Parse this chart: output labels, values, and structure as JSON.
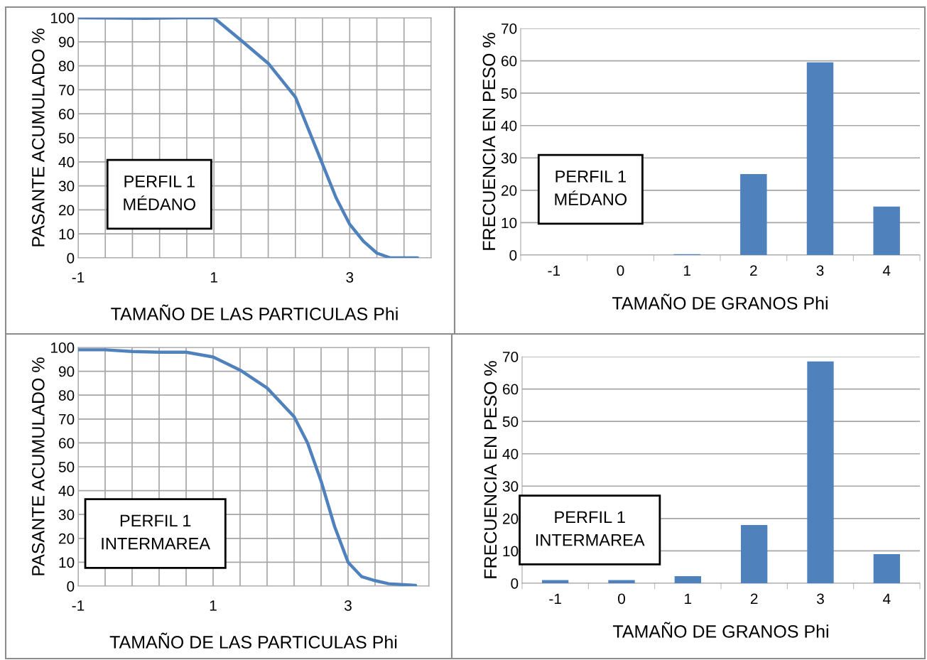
{
  "chart_data": [
    {
      "type": "line",
      "xlabel": "TAMAÑO DE LAS PARTICULAS Phi",
      "ylabel": "PASANTE ACUMULADO %",
      "annotations": [
        "PERFIL 1\nMÉDANO"
      ],
      "series": [
        {
          "color": "#4f81bd",
          "x": [
            -1,
            0,
            0.6,
            1.0,
            1.4,
            1.8,
            2.2,
            2.4,
            2.6,
            2.8,
            3.0,
            3.2,
            3.4,
            3.6,
            4.0
          ],
          "values": [
            100,
            99.8,
            100,
            100,
            90.6,
            81,
            67,
            53,
            39,
            25,
            14,
            7,
            2,
            0,
            0
          ]
        }
      ],
      "xlim": [
        -1,
        4.2
      ],
      "xticks": [
        -1,
        {
          "value": -0.6,
          "label": null
        },
        {
          "value": -0.2,
          "label": null
        },
        {
          "value": 0.2,
          "label": null
        },
        {
          "value": 0.6,
          "label": null
        },
        1,
        {
          "value": 1.4,
          "label": null
        },
        {
          "value": 1.8,
          "label": null
        },
        {
          "value": 2.2,
          "label": null
        },
        {
          "value": 2.6,
          "label": null
        },
        3,
        {
          "value": 3.4,
          "label": null
        },
        {
          "value": 3.8,
          "label": null
        },
        {
          "value": 4.2,
          "label": null
        }
      ],
      "ylim": [
        0,
        100
      ],
      "yticks": [
        0,
        10,
        20,
        30,
        40,
        50,
        60,
        70,
        80,
        90,
        100
      ],
      "grid": true,
      "legend": false,
      "marker": "none",
      "line_style": "solid"
    },
    {
      "type": "bar",
      "xlabel": "TAMAÑO DE GRANOS Phi",
      "ylabel": "FRECUENCIA EN PESO %",
      "annotations": [
        "PERFIL 1\nMÉDANO"
      ],
      "categories": [
        "-1",
        "0",
        "1",
        "2",
        "3",
        "4"
      ],
      "series": [
        {
          "color": "#4f81bd",
          "values": [
            0,
            0,
            0.3,
            25,
            59.5,
            15
          ]
        }
      ],
      "ylim": [
        0,
        70
      ],
      "yticks": [
        0,
        10,
        20,
        30,
        40,
        50,
        60,
        70
      ],
      "grid": "y",
      "legend": false
    },
    {
      "type": "line",
      "xlabel": "TAMAÑO DE LAS PARTICULAS Phi",
      "ylabel": "PASANTE ACUMULADO %",
      "annotations": [
        "PERFIL 1\nINTERMAREA"
      ],
      "series": [
        {
          "color": "#4f81bd",
          "x": [
            -1,
            -0.6,
            -0.2,
            0.2,
            0.6,
            1.0,
            1.4,
            1.8,
            2.2,
            2.4,
            2.6,
            2.8,
            3.0,
            3.2,
            3.4,
            3.6,
            4.0
          ],
          "values": [
            99,
            99,
            98.3,
            98,
            98,
            96,
            90.5,
            83,
            71,
            60,
            44,
            25,
            10,
            4,
            2.3,
            1,
            0.3
          ]
        }
      ],
      "xlim": [
        -1,
        4.2
      ],
      "xticks": [
        -1,
        {
          "value": -0.6,
          "label": null
        },
        {
          "value": -0.2,
          "label": null
        },
        {
          "value": 0.2,
          "label": null
        },
        {
          "value": 0.6,
          "label": null
        },
        1,
        {
          "value": 1.4,
          "label": null
        },
        {
          "value": 1.8,
          "label": null
        },
        {
          "value": 2.2,
          "label": null
        },
        {
          "value": 2.6,
          "label": null
        },
        3,
        {
          "value": 3.4,
          "label": null
        },
        {
          "value": 3.8,
          "label": null
        },
        {
          "value": 4.2,
          "label": null
        }
      ],
      "ylim": [
        0,
        100
      ],
      "yticks": [
        0,
        10,
        20,
        30,
        40,
        50,
        60,
        70,
        80,
        90,
        100
      ],
      "grid": true,
      "legend": false,
      "marker": "none",
      "line_style": "solid"
    },
    {
      "type": "bar",
      "xlabel": "TAMAÑO DE GRANOS Phi",
      "ylabel": "FRECUENCIA EN PESO %",
      "annotations": [
        "PERFIL 1\nINTERMAREA"
      ],
      "categories": [
        "-1",
        "0",
        "1",
        "2",
        "3",
        "4"
      ],
      "series": [
        {
          "color": "#4f81bd",
          "values": [
            1,
            1,
            2.2,
            18,
            68.5,
            9
          ]
        }
      ],
      "ylim": [
        0,
        70
      ],
      "yticks": [
        0,
        10,
        20,
        30,
        40,
        50,
        60,
        70
      ],
      "grid": "y",
      "legend": false
    }
  ]
}
